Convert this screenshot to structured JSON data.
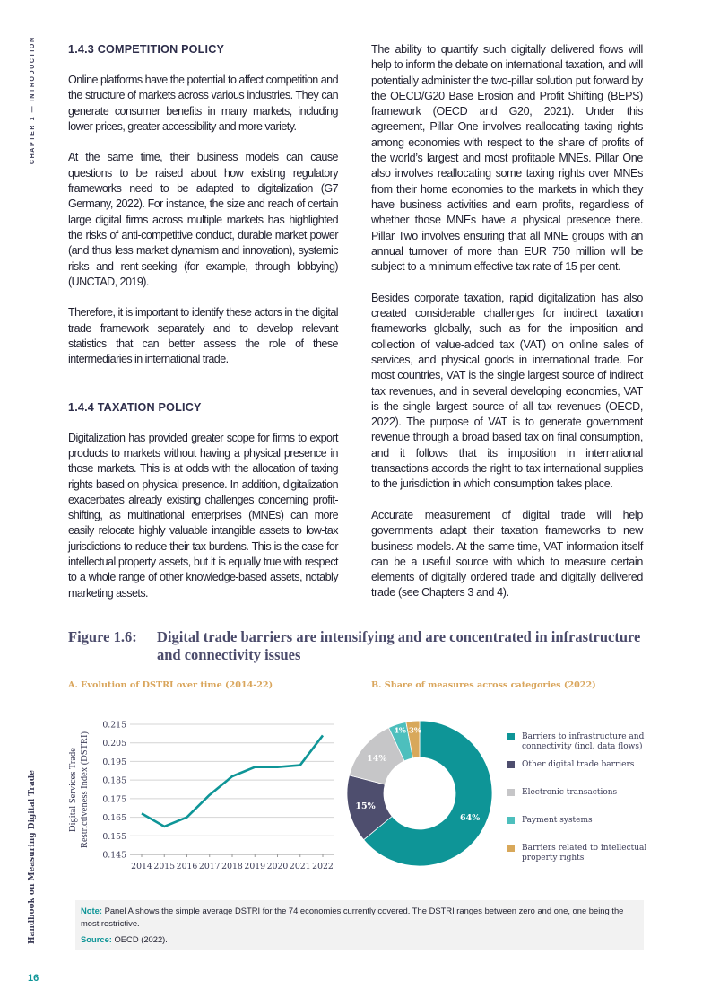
{
  "sidebar": {
    "chapter": "CHAPTER 1 — INTRODUCTION",
    "book": "Handbook on Measuring Digital Trade",
    "page_number": "16"
  },
  "left_column": {
    "heading1": "1.4.3  COMPETITION POLICY",
    "p1": "Online platforms have the potential to affect competition and the structure of markets across various industries. They can generate consumer benefits in many markets, including lower prices, greater accessibility and more variety.",
    "p2": "At the same time, their business models can cause questions to be raised about how existing regulatory frameworks need to be adapted to digitalization (G7 Germany, 2022). For instance, the size and reach of certain large digital firms across multiple markets has highlighted the risks of anti-competitive conduct, durable market power (and thus less market dynamism and innovation), systemic risks and rent-seeking (for example, through lobbying) (UNCTAD, 2019).",
    "p3": "Therefore, it is important to identify these actors in the digital trade framework separately and to develop relevant statistics that can better assess the role of these intermediaries in international trade.",
    "heading2": "1.4.4  TAXATION POLICY",
    "p4": "Digitalization has provided greater scope for firms to export products to markets without having a physical presence in those markets. This is at odds with the allocation of taxing rights based on physical presence. In addition, digitalization exacerbates already existing challenges concerning profit-shifting, as multinational enterprises (MNEs) can more easily relocate highly valuable intangible assets to low-tax jurisdictions to reduce their tax burdens. This is the case for intellectual property assets, but it is equally true with respect to a whole range of other knowledge-based assets, notably marketing assets."
  },
  "right_column": {
    "p1": "The ability to quantify such digitally delivered flows will help to inform the debate on international taxation, and will potentially administer the two-pillar solution put forward by the OECD/G20 Base Erosion and Profit Shifting (BEPS) framework (OECD and G20, 2021). Under this agreement, Pillar One involves reallocating taxing rights among economies with respect to the share of profits of the world’s largest and most profitable MNEs. Pillar One also involves reallocating some taxing rights over MNEs from their home economies to the markets in which they have business activities and earn profits, regardless of whether those MNEs have a physical presence there. Pillar Two involves ensuring that all MNE groups with an annual turnover of more than EUR 750 million will be subject to a minimum effective tax rate of 15 per cent.",
    "p2": "Besides corporate taxation, rapid digitalization has also created considerable challenges for indirect taxation frameworks globally, such as for the imposition and collection of value-added tax (VAT) on online sales of services, and physical goods in international trade. For most countries, VAT is the single largest source of indirect tax revenues, and in several developing economies, VAT is the single largest source of all tax revenues (OECD, 2022). The purpose of VAT is to generate government revenue through a broad based tax on final consumption, and it follows that its imposition in international transactions accords the right to tax international supplies to the jurisdiction in which consumption takes place.",
    "p3": "Accurate measurement of digital trade will help governments adapt their taxation frameworks to new business models. At the same time, VAT information itself can be a useful source with which to measure certain elements of digitally ordered trade and digitally delivered trade (see Chapters 3 and 4)."
  },
  "figure": {
    "number": "Figure 1.6:",
    "title": "Digital trade barriers are intensifying and are concentrated in infrastructure and connectivity issues",
    "note_label": "Note:",
    "note": "Panel A shows the simple average DSTRI for the 74 economies currently covered. The DSTRI ranges between zero and one, one being the most restrictive.",
    "source_label": "Source:",
    "source": "OECD (2022)."
  },
  "chart_data": [
    {
      "type": "line",
      "title": "A. Evolution of DSTRI over time (2014-22)",
      "ylabel_line1": "Digital Services Trade",
      "ylabel_line2": "Restrictiveness Index (DSTRI)",
      "xlabel": "",
      "x": [
        "2014",
        "2015",
        "2016",
        "2017",
        "2018",
        "2019",
        "2020",
        "2021",
        "2022"
      ],
      "values": [
        0.167,
        0.16,
        0.165,
        0.177,
        0.187,
        0.192,
        0.192,
        0.193,
        0.209
      ],
      "yticks": [
        "0.145",
        "0.155",
        "0.165",
        "0.175",
        "0.185",
        "0.195",
        "0.205",
        "0.215"
      ],
      "ylim": [
        0.145,
        0.215
      ],
      "grid": "horizontal",
      "color": "#0e9597"
    },
    {
      "type": "pie",
      "donut": true,
      "title": "B. Share of measures across categories (2022)",
      "legend_position": "right",
      "slices": [
        {
          "name": "Barriers to infrastructure and connectivity (incl. data flows)",
          "value": 64,
          "label": "64%",
          "color": "#0e9597"
        },
        {
          "name": "Other digital trade barriers",
          "value": 15,
          "label": "15%",
          "color": "#4e4e6e"
        },
        {
          "name": "Electronic transactions",
          "value": 14,
          "label": "14%",
          "color": "#c6c6c8"
        },
        {
          "name": "Payment systems",
          "value": 4,
          "label": "4%",
          "color": "#4dbfbd"
        },
        {
          "name": "Barriers related to intellectual property rights",
          "value": 3,
          "label": "3%",
          "color": "#d8a85a"
        }
      ]
    }
  ]
}
